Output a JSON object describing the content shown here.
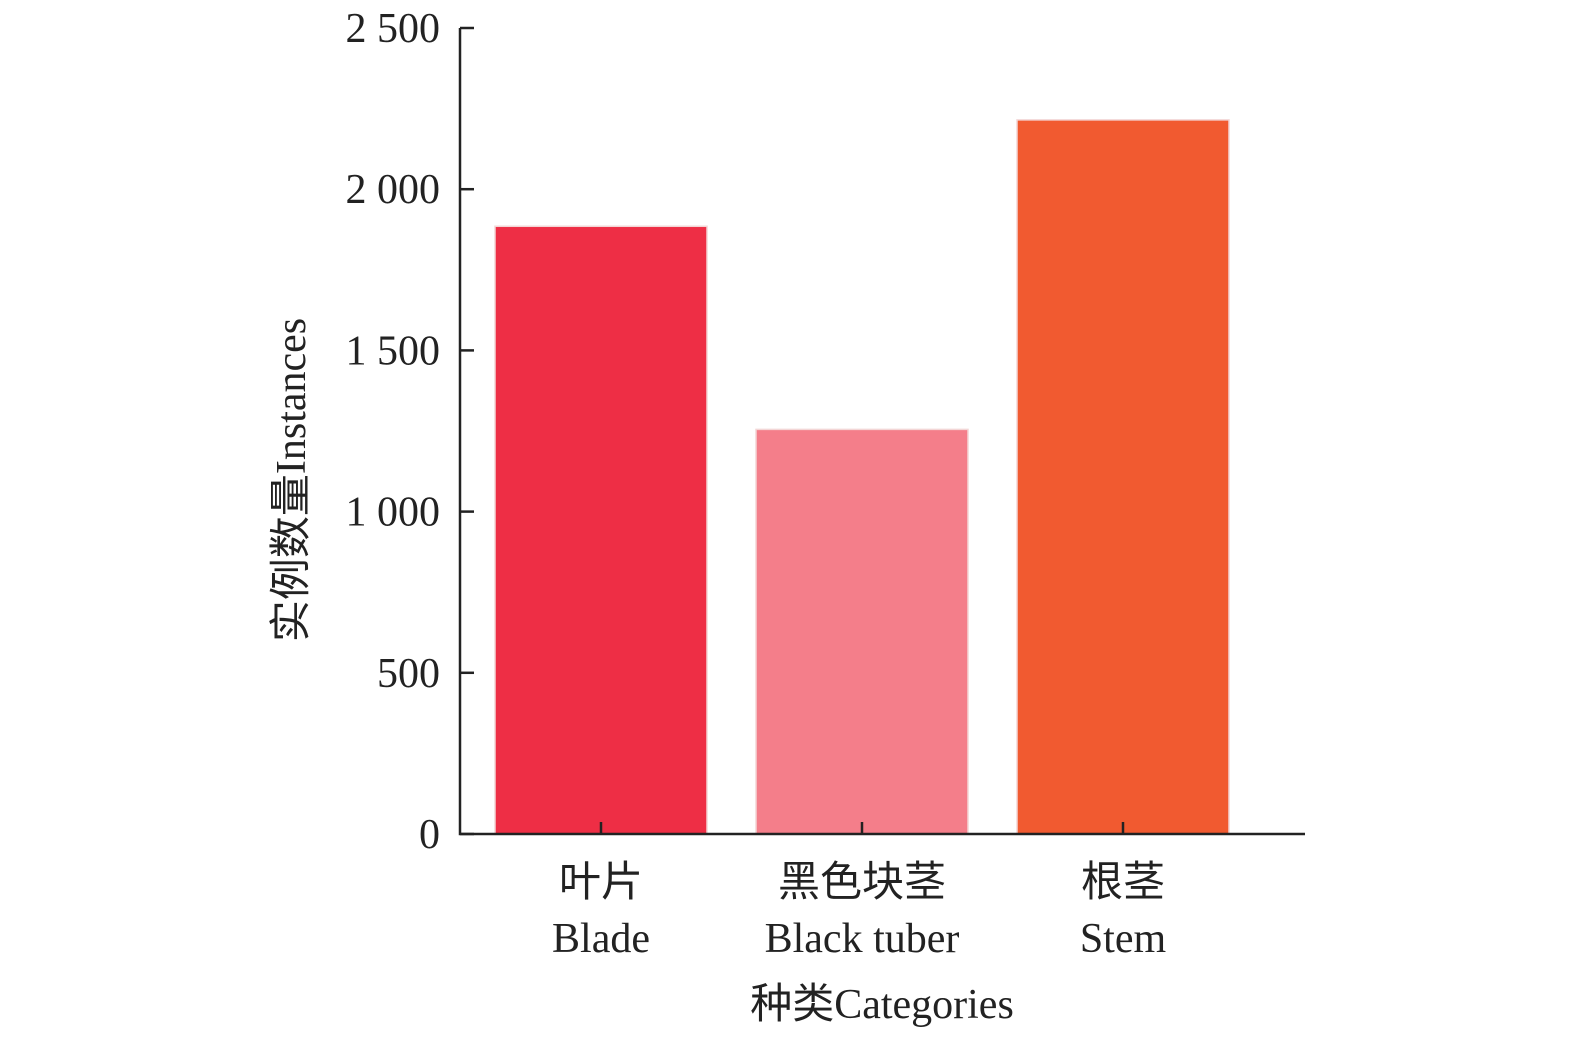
{
  "chart_data": {
    "type": "bar",
    "categories": [
      {
        "zh": "叶片",
        "en": "Blade"
      },
      {
        "zh": "黑色块茎",
        "en": "Black tuber"
      },
      {
        "zh": "根茎",
        "en": "Stem"
      }
    ],
    "values": [
      1885,
      1255,
      2215
    ],
    "colors": [
      "#ee2e45",
      "#f47e8a",
      "#f15a30"
    ],
    "ylabel": "实例数量Instances",
    "xlabel": "种类Categories",
    "ylim": [
      0,
      2500
    ],
    "yticks": [
      0,
      500,
      1000,
      1500,
      2000,
      2500
    ],
    "ytick_labels": [
      "0",
      "500",
      "1 000",
      "1 500",
      "2 000",
      "2 500"
    ],
    "grid": false,
    "legend": "none"
  }
}
